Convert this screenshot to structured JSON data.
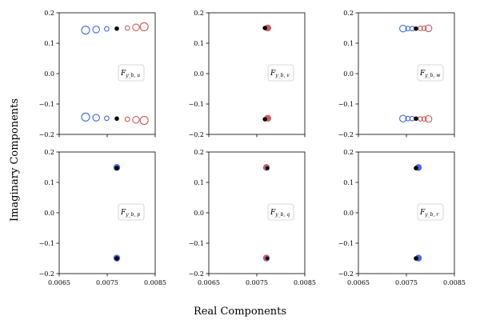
{
  "figure": {
    "xlabel": "Real Components",
    "ylabel": "Imaginary Components"
  },
  "colors": {
    "blue": "#4169e1",
    "red": "#cd5c5c",
    "black": "#000000",
    "label_box_border": "#cccccc"
  },
  "chart_data": [
    {
      "type": "scatter",
      "panel_label": {
        "main": "F",
        "sub": "y_b, u"
      },
      "xlim": [
        0.0065,
        0.0085
      ],
      "ylim": [
        -0.2,
        0.2
      ],
      "xticks": [
        "0.0065",
        "0.0075",
        "0.0085"
      ],
      "show_xtick_labels": false,
      "yticks": [
        "-0.2",
        "-0.1",
        "0.0",
        "0.1",
        "0.2"
      ],
      "legend_placement": "center-right",
      "points": [
        {
          "x": 0.00705,
          "y": 0.143,
          "color": "blue",
          "style": "hollow",
          "size": "large"
        },
        {
          "x": 0.00727,
          "y": 0.145,
          "color": "blue",
          "style": "hollow",
          "size": "medium"
        },
        {
          "x": 0.00749,
          "y": 0.147,
          "color": "blue",
          "style": "hollow",
          "size": "small"
        },
        {
          "x": 0.0077,
          "y": 0.148,
          "color": "black",
          "style": "filled",
          "size": "small"
        },
        {
          "x": 0.00792,
          "y": 0.15,
          "color": "red",
          "style": "hollow",
          "size": "small"
        },
        {
          "x": 0.0081,
          "y": 0.152,
          "color": "red",
          "style": "hollow",
          "size": "medium"
        },
        {
          "x": 0.00827,
          "y": 0.154,
          "color": "red",
          "style": "hollow",
          "size": "large"
        },
        {
          "x": 0.00705,
          "y": -0.143,
          "color": "blue",
          "style": "hollow",
          "size": "large"
        },
        {
          "x": 0.00727,
          "y": -0.145,
          "color": "blue",
          "style": "hollow",
          "size": "medium"
        },
        {
          "x": 0.00749,
          "y": -0.147,
          "color": "blue",
          "style": "hollow",
          "size": "small"
        },
        {
          "x": 0.0077,
          "y": -0.148,
          "color": "black",
          "style": "filled",
          "size": "small"
        },
        {
          "x": 0.00792,
          "y": -0.15,
          "color": "red",
          "style": "hollow",
          "size": "small"
        },
        {
          "x": 0.0081,
          "y": -0.152,
          "color": "red",
          "style": "hollow",
          "size": "medium"
        },
        {
          "x": 0.00827,
          "y": -0.154,
          "color": "red",
          "style": "hollow",
          "size": "large"
        }
      ]
    },
    {
      "type": "scatter",
      "panel_label": {
        "main": "F",
        "sub": "y_b, v"
      },
      "xlim": [
        0.0065,
        0.0085
      ],
      "ylim": [
        -0.2,
        0.2
      ],
      "xticks": [
        "0.0065",
        "0.0075",
        "0.0085"
      ],
      "show_xtick_labels": false,
      "yticks": [
        "-0.2",
        "-0.1",
        "0.0",
        "0.1",
        "0.2"
      ],
      "legend_placement": "center-right",
      "points": [
        {
          "x": 0.00773,
          "y": 0.15,
          "color": "red",
          "style": "filled",
          "size": "medium"
        },
        {
          "x": 0.00767,
          "y": 0.15,
          "color": "black",
          "style": "filled",
          "size": "small"
        },
        {
          "x": 0.00773,
          "y": -0.147,
          "color": "red",
          "style": "filled",
          "size": "medium"
        },
        {
          "x": 0.00767,
          "y": -0.15,
          "color": "black",
          "style": "filled",
          "size": "small"
        }
      ]
    },
    {
      "type": "scatter",
      "panel_label": {
        "main": "F",
        "sub": "y_b, w"
      },
      "xlim": [
        0.0065,
        0.0085
      ],
      "ylim": [
        -0.2,
        0.2
      ],
      "xticks": [
        "0.0065",
        "0.0075",
        "0.0085"
      ],
      "show_xtick_labels": false,
      "yticks": [
        "-0.2",
        "-0.1",
        "0.0",
        "0.1",
        "0.2"
      ],
      "legend_placement": "center-right",
      "points": [
        {
          "x": 0.00743,
          "y": 0.148,
          "color": "blue",
          "style": "hollow",
          "size": "medium"
        },
        {
          "x": 0.00753,
          "y": 0.148,
          "color": "blue",
          "style": "hollow",
          "size": "small"
        },
        {
          "x": 0.00762,
          "y": 0.148,
          "color": "blue",
          "style": "hollow",
          "size": "small"
        },
        {
          "x": 0.0077,
          "y": 0.148,
          "color": "black",
          "style": "filled",
          "size": "small"
        },
        {
          "x": 0.00779,
          "y": 0.149,
          "color": "red",
          "style": "hollow",
          "size": "small"
        },
        {
          "x": 0.00787,
          "y": 0.149,
          "color": "red",
          "style": "hollow",
          "size": "small"
        },
        {
          "x": 0.00796,
          "y": 0.149,
          "color": "red",
          "style": "hollow",
          "size": "medium"
        },
        {
          "x": 0.00743,
          "y": -0.148,
          "color": "blue",
          "style": "hollow",
          "size": "medium"
        },
        {
          "x": 0.00753,
          "y": -0.148,
          "color": "blue",
          "style": "hollow",
          "size": "small"
        },
        {
          "x": 0.00762,
          "y": -0.148,
          "color": "blue",
          "style": "hollow",
          "size": "small"
        },
        {
          "x": 0.0077,
          "y": -0.148,
          "color": "black",
          "style": "filled",
          "size": "small"
        },
        {
          "x": 0.00779,
          "y": -0.149,
          "color": "red",
          "style": "hollow",
          "size": "small"
        },
        {
          "x": 0.00787,
          "y": -0.149,
          "color": "red",
          "style": "hollow",
          "size": "small"
        },
        {
          "x": 0.00796,
          "y": -0.149,
          "color": "red",
          "style": "hollow",
          "size": "medium"
        }
      ]
    },
    {
      "type": "scatter",
      "panel_label": {
        "main": "F",
        "sub": "y_b, p"
      },
      "xlim": [
        0.0065,
        0.0085
      ],
      "ylim": [
        -0.2,
        0.2
      ],
      "xticks": [
        "0.0065",
        "0.0075",
        "0.0085"
      ],
      "show_xtick_labels": true,
      "yticks": [
        "-0.2",
        "-0.1",
        "0.0",
        "0.1",
        "0.2"
      ],
      "legend_placement": "center-right",
      "points": [
        {
          "x": 0.0077,
          "y": 0.149,
          "color": "blue",
          "style": "filled",
          "size": "medium"
        },
        {
          "x": 0.0077,
          "y": 0.147,
          "color": "black",
          "style": "filled",
          "size": "small"
        },
        {
          "x": 0.0077,
          "y": -0.149,
          "color": "blue",
          "style": "filled",
          "size": "medium"
        },
        {
          "x": 0.0077,
          "y": -0.15,
          "color": "black",
          "style": "filled",
          "size": "small"
        }
      ]
    },
    {
      "type": "scatter",
      "panel_label": {
        "main": "F",
        "sub": "y_b, q"
      },
      "xlim": [
        0.0065,
        0.0085
      ],
      "ylim": [
        -0.2,
        0.2
      ],
      "xticks": [
        "0.0065",
        "0.0075",
        "0.0085"
      ],
      "show_xtick_labels": true,
      "yticks": [
        "-0.2",
        "-0.1",
        "0.0",
        "0.1",
        "0.2"
      ],
      "legend_placement": "center-right",
      "points": [
        {
          "x": 0.0077,
          "y": 0.149,
          "color": "red",
          "style": "filled",
          "size": "medium"
        },
        {
          "x": 0.00772,
          "y": 0.147,
          "color": "blue",
          "style": "filled",
          "size": "small"
        },
        {
          "x": 0.00772,
          "y": 0.147,
          "color": "black",
          "style": "filled",
          "size": "tiny"
        },
        {
          "x": 0.0077,
          "y": -0.149,
          "color": "red",
          "style": "filled",
          "size": "medium"
        },
        {
          "x": 0.00772,
          "y": -0.15,
          "color": "blue",
          "style": "filled",
          "size": "small"
        },
        {
          "x": 0.00772,
          "y": -0.15,
          "color": "black",
          "style": "filled",
          "size": "tiny"
        }
      ]
    },
    {
      "type": "scatter",
      "panel_label": {
        "main": "F",
        "sub": "y_b, r"
      },
      "xlim": [
        0.0065,
        0.0085
      ],
      "ylim": [
        -0.2,
        0.2
      ],
      "xticks": [
        "0.0065",
        "0.0075",
        "0.0085"
      ],
      "show_xtick_labels": true,
      "yticks": [
        "-0.2",
        "-0.1",
        "0.0",
        "0.1",
        "0.2"
      ],
      "legend_placement": "center-right",
      "points": [
        {
          "x": 0.00775,
          "y": 0.149,
          "color": "blue",
          "style": "filled",
          "size": "medium"
        },
        {
          "x": 0.0077,
          "y": 0.147,
          "color": "black",
          "style": "filled",
          "size": "small"
        },
        {
          "x": 0.00775,
          "y": -0.149,
          "color": "blue",
          "style": "filled",
          "size": "medium"
        },
        {
          "x": 0.0077,
          "y": -0.15,
          "color": "black",
          "style": "filled",
          "size": "small"
        }
      ]
    }
  ]
}
